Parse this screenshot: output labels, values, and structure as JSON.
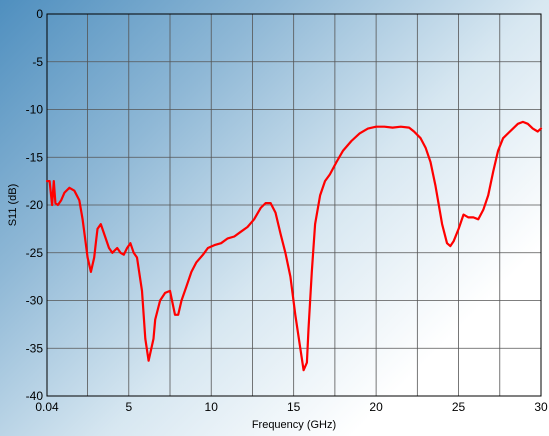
{
  "chart_data": {
    "type": "line",
    "title": "",
    "xlabel": "Frequency (GHz)",
    "ylabel": "S11 (dB)",
    "xlim": [
      0.04,
      30
    ],
    "ylim": [
      -40,
      0
    ],
    "grid": true,
    "legend": "none",
    "x_ticks": [
      {
        "value": 0.04,
        "label": "0.04"
      },
      {
        "value": 5,
        "label": "5"
      },
      {
        "value": 10,
        "label": "10"
      },
      {
        "value": 15,
        "label": "15"
      },
      {
        "value": 20,
        "label": "20"
      },
      {
        "value": 25,
        "label": "25"
      },
      {
        "value": 30,
        "label": "30"
      }
    ],
    "y_ticks": [
      {
        "value": 0,
        "label": "0"
      },
      {
        "value": -5,
        "label": "-5"
      },
      {
        "value": -10,
        "label": "-10"
      },
      {
        "value": -15,
        "label": "-15"
      },
      {
        "value": -20,
        "label": "-20"
      },
      {
        "value": -25,
        "label": "-25"
      },
      {
        "value": -30,
        "label": "-30"
      },
      {
        "value": -35,
        "label": "-35"
      },
      {
        "value": -40,
        "label": "-40"
      }
    ],
    "series": [
      {
        "color": "#ff0000",
        "x": [
          0.04,
          0.2,
          0.35,
          0.45,
          0.55,
          0.7,
          0.9,
          1.1,
          1.4,
          1.7,
          2.0,
          2.2,
          2.5,
          2.7,
          2.9,
          3.0,
          3.1,
          3.3,
          3.6,
          3.8,
          4.0,
          4.3,
          4.5,
          4.7,
          4.9,
          5.1,
          5.3,
          5.5,
          5.8,
          6.0,
          6.2,
          6.5,
          6.6,
          6.9,
          7.2,
          7.5,
          7.8,
          8.0,
          8.2,
          8.5,
          8.8,
          9.1,
          9.5,
          9.8,
          10.2,
          10.6,
          11.0,
          11.4,
          11.8,
          12.2,
          12.6,
          13.0,
          13.3,
          13.6,
          13.9,
          14.2,
          14.5,
          14.8,
          15.1,
          15.4,
          15.6,
          15.8,
          15.9,
          16.1,
          16.3,
          16.6,
          16.9,
          17.2,
          17.6,
          18.0,
          18.5,
          19.0,
          19.5,
          20.0,
          20.5,
          21.0,
          21.5,
          22.0,
          22.3,
          22.7,
          23.0,
          23.3,
          23.6,
          24.0,
          24.3,
          24.5,
          24.7,
          25.0,
          25.3,
          25.6,
          25.9,
          26.2,
          26.5,
          26.8,
          27.1,
          27.4,
          27.7,
          28.0,
          28.3,
          28.6,
          28.9,
          29.2,
          29.5,
          29.8,
          30.0
        ],
        "y": [
          -17.5,
          -17.5,
          -20.0,
          -17.5,
          -19.8,
          -20.0,
          -19.5,
          -18.7,
          -18.2,
          -18.5,
          -19.5,
          -21.5,
          -25.5,
          -27.0,
          -25.5,
          -24.0,
          -22.5,
          -22.0,
          -23.5,
          -24.5,
          -25.0,
          -24.5,
          -25.0,
          -25.2,
          -24.5,
          -24.0,
          -25.0,
          -25.5,
          -29.0,
          -34.0,
          -36.3,
          -34.0,
          -32.0,
          -30.0,
          -29.2,
          -29.0,
          -31.5,
          -31.5,
          -30.0,
          -28.5,
          -27.0,
          -26.0,
          -25.2,
          -24.5,
          -24.2,
          -24.0,
          -23.5,
          -23.3,
          -22.8,
          -22.3,
          -21.5,
          -20.3,
          -19.8,
          -19.8,
          -20.8,
          -23.0,
          -25.0,
          -27.5,
          -31.5,
          -35.0,
          -37.3,
          -36.5,
          -33.0,
          -27.0,
          -22.0,
          -19.0,
          -17.5,
          -16.8,
          -15.5,
          -14.3,
          -13.3,
          -12.5,
          -12.0,
          -11.8,
          -11.8,
          -11.9,
          -11.8,
          -11.9,
          -12.3,
          -13.0,
          -14.0,
          -15.5,
          -18.0,
          -22.0,
          -24.0,
          -24.3,
          -23.8,
          -22.5,
          -21.0,
          -21.3,
          -21.3,
          -21.5,
          -20.5,
          -19.0,
          -16.5,
          -14.3,
          -13.0,
          -12.5,
          -12.0,
          -11.5,
          -11.3,
          -11.5,
          -12.0,
          -12.3,
          -12.0
        ]
      }
    ]
  }
}
